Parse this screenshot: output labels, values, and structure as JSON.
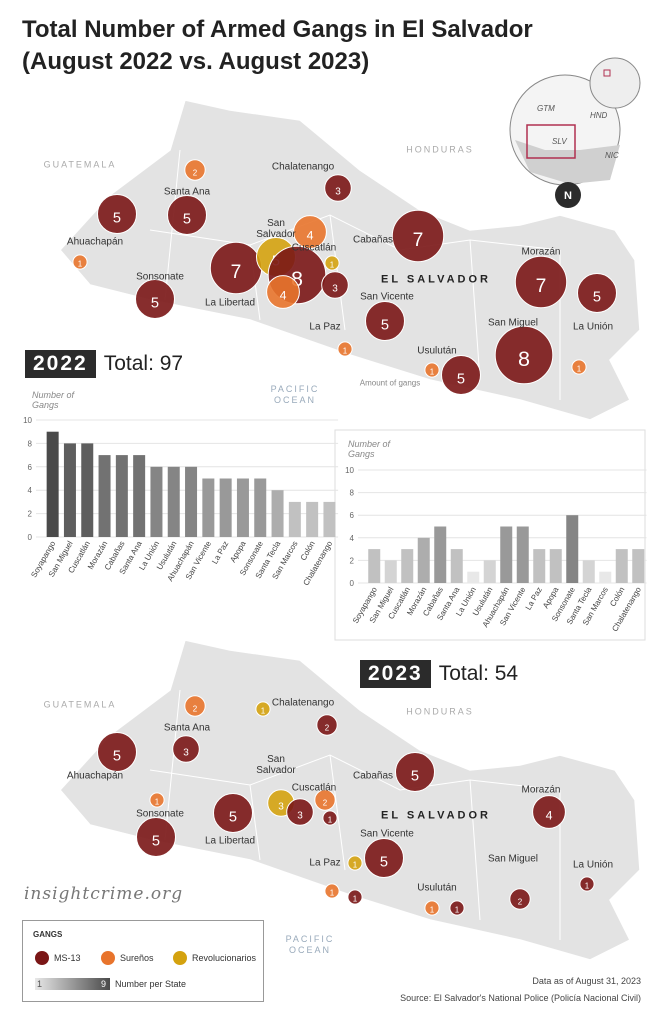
{
  "title": "Total Number of Armed Gangs in El Salvador (August 2022 vs. August 2023)",
  "locator": {
    "labels": [
      "GTM",
      "HND",
      "SLV",
      "NIC"
    ],
    "north": "N"
  },
  "legend": {
    "title": "GANGS",
    "gangs": [
      {
        "name": "MS-13",
        "color": "#7a1616"
      },
      {
        "name": "Sureños",
        "color": "#e8742c"
      },
      {
        "name": "Revolucionarios",
        "color": "#d4a20f"
      }
    ],
    "scale_min": 1,
    "scale_max": 9,
    "scale_label": "Number per State",
    "scale_colors": [
      "#e8e8e8",
      "#4a4a4a"
    ]
  },
  "maps": [
    {
      "year_label": "2022",
      "total_label": "Total: 97",
      "places": [
        "GUATEMALA",
        "HONDURAS",
        "Chalatenango",
        "Santa Ana",
        "Ahuachapán",
        "San Salvador",
        "Cuscatlán",
        "Cabañas",
        "EL SALVADOR",
        "Morazán",
        "Sonsonate",
        "La Libertad",
        "San Vicente",
        "La Paz",
        "San Miguel",
        "La Unión",
        "Usulután",
        "PACIFIC OCEAN",
        "Amount of gangs"
      ],
      "bubbles": [
        {
          "gang": "Sureños",
          "value": 2
        },
        {
          "gang": "MS-13",
          "value": 3
        },
        {
          "gang": "MS-13",
          "value": 5
        },
        {
          "gang": "MS-13",
          "value": 5
        },
        {
          "gang": "Sureños",
          "value": 1
        },
        {
          "gang": "MS-13",
          "value": 7
        },
        {
          "gang": "Revolucionarios",
          "value": 5
        },
        {
          "gang": "Sureños",
          "value": 4
        },
        {
          "gang": "Revolucionarios",
          "value": 1
        },
        {
          "gang": "MS-13",
          "value": 8
        },
        {
          "gang": "Sureños",
          "value": 4
        },
        {
          "gang": "MS-13",
          "value": 3
        },
        {
          "gang": "MS-13",
          "value": 7
        },
        {
          "gang": "MS-13",
          "value": 5
        },
        {
          "gang": "MS-13",
          "value": 7
        },
        {
          "gang": "MS-13",
          "value": 5
        },
        {
          "gang": "MS-13",
          "value": 5
        },
        {
          "gang": "MS-13",
          "value": 8
        },
        {
          "gang": "Sureños",
          "value": 1
        },
        {
          "gang": "Sureños",
          "value": 1
        },
        {
          "gang": "MS-13",
          "value": 5
        },
        {
          "gang": "Sureños",
          "value": 1
        }
      ]
    },
    {
      "year_label": "2023",
      "total_label": "Total: 54",
      "places": [
        "GUATEMALA",
        "HONDURAS",
        "Chalatenango",
        "Santa Ana",
        "Ahuachapán",
        "San Salvador",
        "Cuscatlán",
        "Cabañas",
        "EL SALVADOR",
        "Morazán",
        "Sonsonate",
        "La Libertad",
        "San Vicente",
        "La Paz",
        "San Miguel",
        "La Unión",
        "Usulután",
        "PACIFIC OCEAN"
      ],
      "bubbles": [
        {
          "gang": "Sureños",
          "value": 2
        },
        {
          "gang": "Revolucionarios",
          "value": 1
        },
        {
          "gang": "MS-13",
          "value": 2
        },
        {
          "gang": "MS-13",
          "value": 5
        },
        {
          "gang": "MS-13",
          "value": 3
        },
        {
          "gang": "MS-13",
          "value": 5
        },
        {
          "gang": "Sureños",
          "value": 1
        },
        {
          "gang": "Revolucionarios",
          "value": 3
        },
        {
          "gang": "MS-13",
          "value": 3
        },
        {
          "gang": "Sureños",
          "value": 2
        },
        {
          "gang": "MS-13",
          "value": 1
        },
        {
          "gang": "MS-13",
          "value": 5
        },
        {
          "gang": "MS-13",
          "value": 5
        },
        {
          "gang": "MS-13",
          "value": 4
        },
        {
          "gang": "MS-13",
          "value": 5
        },
        {
          "gang": "Revolucionarios",
          "value": 1
        },
        {
          "gang": "MS-13",
          "value": 1
        },
        {
          "gang": "Sureños",
          "value": 1
        },
        {
          "gang": "MS-13",
          "value": 1
        },
        {
          "gang": "Sureños",
          "value": 1
        },
        {
          "gang": "MS-13",
          "value": 1
        },
        {
          "gang": "MS-13",
          "value": 2
        }
      ]
    }
  ],
  "chart_data": [
    {
      "type": "bar",
      "y_label": "Number of Gangs",
      "categories": [
        "Soyapango",
        "San Miguel",
        "Cuscatlán",
        "Morazán",
        "Cabañas",
        "Santa Ana",
        "La Unión",
        "Usulután",
        "Ahuachapán",
        "San Vicente",
        "La Paz",
        "Apopa",
        "Sonsonate",
        "Santa Tecla",
        "San Marcos",
        "Colón",
        "Chalatenango"
      ],
      "values": [
        9,
        8,
        8,
        7,
        7,
        7,
        6,
        6,
        6,
        5,
        5,
        5,
        5,
        4,
        3,
        3,
        3
      ],
      "ylim": [
        0,
        10
      ],
      "yticks": [
        0,
        2,
        4,
        6,
        8,
        10
      ]
    },
    {
      "type": "bar",
      "y_label": "Number of Gangs",
      "categories": [
        "Soyapango",
        "San Miguel",
        "Cuscatlán",
        "Morazán",
        "Cabañas",
        "Santa Ana",
        "La Unión",
        "Usulután",
        "Ahuachapán",
        "San Vicente",
        "La Paz",
        "Apopa",
        "Sonsonate",
        "Santa Tecla",
        "San Marcos",
        "Colón",
        "Chalatenango"
      ],
      "values": [
        3,
        2,
        3,
        4,
        5,
        3,
        1,
        2,
        5,
        5,
        3,
        3,
        6,
        2,
        1,
        3,
        3
      ],
      "ylim": [
        0,
        10
      ],
      "yticks": [
        0,
        2,
        4,
        6,
        8,
        10
      ]
    }
  ],
  "brand": "insightcrime.org",
  "date_note": "Data as of August 31, 2023",
  "source": "Source: El Salvador's National Police (Policía Nacional Civil)"
}
